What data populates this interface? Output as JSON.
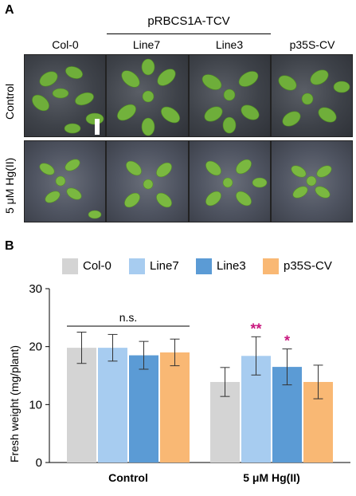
{
  "panel_a": {
    "letter": "A",
    "construct_label": "pRBCS1A-TCV",
    "columns": [
      "Col-0",
      "Line7",
      "Line3",
      "p35S-CV"
    ],
    "rows": [
      "Control",
      "5 μM Hg(II)"
    ]
  },
  "panel_b": {
    "letter": "B"
  },
  "colors": {
    "Col-0": "#d4d4d4",
    "Line7": "#a7ccf0",
    "Line3": "#5b9bd5",
    "p35S-CV": "#f9b874",
    "significance": "#c8177e"
  },
  "chart_data": {
    "type": "bar",
    "categories": [
      "Control",
      "5 μM Hg(II)"
    ],
    "series": [
      {
        "name": "Col-0",
        "values": [
          19.8,
          13.9
        ],
        "errors": [
          2.7,
          2.5
        ],
        "significance": [
          "",
          ""
        ]
      },
      {
        "name": "Line7",
        "values": [
          19.8,
          18.4
        ],
        "errors": [
          2.3,
          3.3
        ],
        "significance": [
          "",
          "**"
        ]
      },
      {
        "name": "Line3",
        "values": [
          18.5,
          16.5
        ],
        "errors": [
          2.4,
          3.1
        ],
        "significance": [
          "",
          "*"
        ]
      },
      {
        "name": "p35S-CV",
        "values": [
          19.0,
          13.9
        ],
        "errors": [
          2.3,
          2.9
        ],
        "significance": [
          "",
          ""
        ]
      }
    ],
    "ylabel": "Fresh weight (mg/plant)",
    "xlabel": "",
    "ylim": [
      0,
      30
    ],
    "yticks": [
      0,
      10,
      20,
      30
    ],
    "annotation": "n.s.",
    "legend_position": "top",
    "grid": false
  }
}
